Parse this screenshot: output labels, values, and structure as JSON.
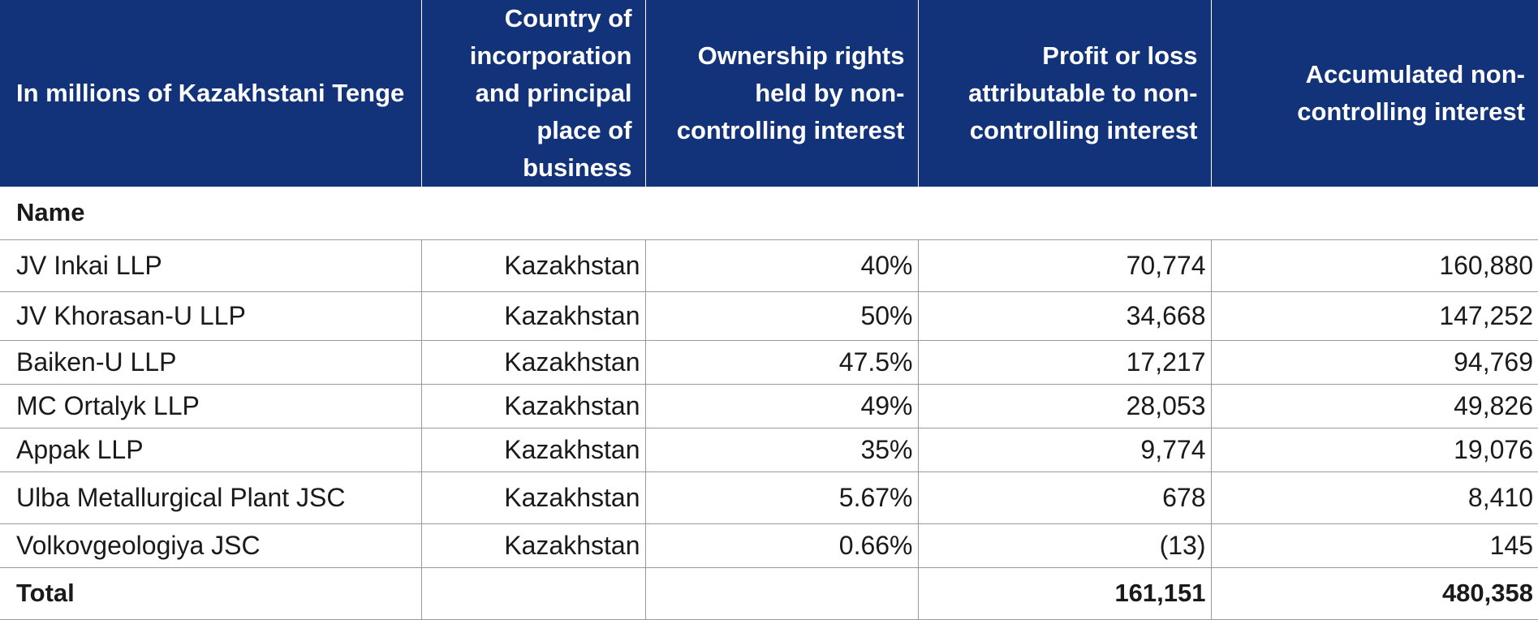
{
  "header": {
    "unit": "In millions of Kazakhstani Tenge",
    "country": "Country of incorporation and principal place of business",
    "ownership": "Ownership rights held by non-controlling interest",
    "profit": "Profit or loss attributable to non-controlling interest",
    "accumulated": "Accumulated non-controlling interest"
  },
  "section_label": "Name",
  "rows": [
    {
      "name": "JV Inkai LLP",
      "country": "Kazakhstan",
      "ownership": "40%",
      "profit": "70,774",
      "accumulated": "160,880"
    },
    {
      "name": "JV Khorasan-U LLP",
      "country": "Kazakhstan",
      "ownership": "50%",
      "profit": "34,668",
      "accumulated": "147,252"
    },
    {
      "name": "Baiken-U LLP",
      "country": "Kazakhstan",
      "ownership": "47.5%",
      "profit": "17,217",
      "accumulated": "94,769"
    },
    {
      "name": "MC Ortalyk LLP",
      "country": "Kazakhstan",
      "ownership": "49%",
      "profit": "28,053",
      "accumulated": "49,826"
    },
    {
      "name": "Appak LLP",
      "country": "Kazakhstan",
      "ownership": "35%",
      "profit": "9,774",
      "accumulated": "19,076"
    },
    {
      "name": "Ulba Metallurgical Plant JSC",
      "country": "Kazakhstan",
      "ownership": "5.67%",
      "profit": "678",
      "accumulated": "8,410"
    },
    {
      "name": "Volkovgeologiya JSC",
      "country": "Kazakhstan",
      "ownership": "0.66%",
      "profit": "(13)",
      "accumulated": "145"
    }
  ],
  "total": {
    "label": "Total",
    "profit": "161,151",
    "accumulated": "480,358"
  },
  "colors": {
    "header_bg": "#12337a",
    "header_text": "#ffffff",
    "grid": "#9a9a9a"
  }
}
